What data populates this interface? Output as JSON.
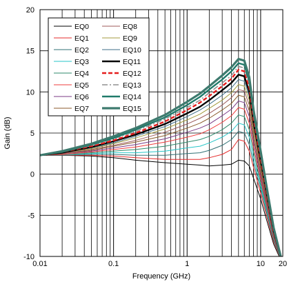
{
  "chart_data": {
    "type": "line",
    "title": "",
    "xlabel": "Frequency (GHz)",
    "ylabel": "Gain (dB)",
    "xscale": "log",
    "xlim": [
      0.01,
      20
    ],
    "ylim": [
      -10,
      20
    ],
    "grid": true,
    "legend_position": "top-left",
    "x_ticks": [
      {
        "value": 0.01,
        "label": "0.01"
      },
      {
        "value": 0.1,
        "label": "0.1"
      },
      {
        "value": 1,
        "label": "1"
      },
      {
        "value": 10,
        "label": "10"
      },
      {
        "value": 20,
        "label": "20"
      }
    ],
    "y_ticks": [
      {
        "value": -10,
        "label": "-10"
      },
      {
        "value": -5,
        "label": "-5"
      },
      {
        "value": 0,
        "label": "0"
      },
      {
        "value": 5,
        "label": "5"
      },
      {
        "value": 10,
        "label": "10"
      },
      {
        "value": 15,
        "label": "15"
      },
      {
        "value": 20,
        "label": "20"
      }
    ],
    "x": [
      0.01,
      0.02,
      0.05,
      0.1,
      0.2,
      0.5,
      1,
      1.5,
      2,
      3,
      4,
      5,
      6,
      7,
      8,
      10,
      12,
      15,
      20
    ],
    "series": [
      {
        "name": "EQ0",
        "color": "#000000",
        "width": 1,
        "dash": "",
        "values": [
          2.3,
          2.3,
          2.2,
          2.0,
          1.7,
          1.4,
          1.2,
          1.1,
          1.0,
          1.1,
          1.2,
          1.7,
          1.6,
          1.0,
          -0.5,
          -3.0,
          -5.5,
          -8.5,
          -11.0
        ]
      },
      {
        "name": "EQ1",
        "color": "#e52a2a",
        "width": 1,
        "dash": "",
        "values": [
          2.3,
          2.3,
          2.3,
          2.2,
          2.0,
          1.8,
          1.8,
          1.8,
          2.0,
          2.4,
          3.0,
          4.2,
          4.0,
          2.8,
          0.8,
          -2.3,
          -5.0,
          -8.2,
          -11.0
        ]
      },
      {
        "name": "EQ2",
        "color": "#2f6f73",
        "width": 1,
        "dash": "",
        "values": [
          2.3,
          2.3,
          2.4,
          2.4,
          2.3,
          2.3,
          2.5,
          2.6,
          2.9,
          3.5,
          4.2,
          5.2,
          5.0,
          3.6,
          1.4,
          -1.8,
          -4.6,
          -8.0,
          -11.0
        ]
      },
      {
        "name": "EQ3",
        "color": "#25c6c8",
        "width": 1,
        "dash": "",
        "values": [
          2.3,
          2.4,
          2.5,
          2.6,
          2.6,
          2.8,
          3.2,
          3.4,
          3.8,
          4.5,
          5.2,
          6.2,
          6.0,
          4.5,
          2.0,
          -1.4,
          -4.3,
          -7.8,
          -11.0
        ]
      },
      {
        "name": "EQ4",
        "color": "#2c8a6b",
        "width": 1,
        "dash": "",
        "values": [
          2.3,
          2.4,
          2.6,
          2.8,
          3.0,
          3.4,
          3.9,
          4.2,
          4.6,
          5.4,
          6.2,
          7.2,
          7.0,
          5.4,
          2.7,
          -1.0,
          -4.0,
          -7.7,
          -11.0
        ]
      },
      {
        "name": "EQ5",
        "color": "#ef3b3b",
        "width": 1,
        "dash": "",
        "values": [
          2.3,
          2.4,
          2.7,
          3.0,
          3.3,
          3.9,
          4.5,
          4.9,
          5.4,
          6.3,
          7.1,
          8.1,
          7.9,
          6.2,
          3.3,
          -0.6,
          -3.7,
          -7.6,
          -11.0
        ]
      },
      {
        "name": "EQ6",
        "color": "#7b3a86",
        "width": 1,
        "dash": "",
        "values": [
          2.3,
          2.5,
          2.8,
          3.2,
          3.6,
          4.3,
          5.1,
          5.6,
          6.1,
          7.1,
          7.9,
          8.9,
          8.7,
          7.0,
          3.9,
          -0.2,
          -3.4,
          -7.4,
          -11.0
        ]
      },
      {
        "name": "EQ7",
        "color": "#8b5a2b",
        "width": 1,
        "dash": "",
        "values": [
          2.3,
          2.5,
          2.9,
          3.4,
          3.9,
          4.7,
          5.6,
          6.2,
          6.8,
          7.8,
          8.6,
          9.6,
          9.4,
          7.7,
          4.4,
          0.2,
          -3.1,
          -7.3,
          -11.0
        ]
      },
      {
        "name": "EQ8",
        "color": "#9c5a5a",
        "width": 1,
        "dash": "",
        "values": [
          2.3,
          2.5,
          3.0,
          3.5,
          4.1,
          5.1,
          6.1,
          6.8,
          7.4,
          8.4,
          9.3,
          10.3,
          10.1,
          8.4,
          4.9,
          0.6,
          -2.8,
          -7.2,
          -11.0
        ]
      },
      {
        "name": "EQ9",
        "color": "#a39a3c",
        "width": 1,
        "dash": "",
        "values": [
          2.3,
          2.6,
          3.1,
          3.7,
          4.4,
          5.5,
          6.6,
          7.3,
          8.0,
          9.0,
          9.9,
          10.9,
          10.7,
          9.0,
          5.4,
          1.0,
          -2.6,
          -7.1,
          -11.0
        ]
      },
      {
        "name": "EQ10",
        "color": "#3b6d87",
        "width": 1,
        "dash": "",
        "values": [
          2.3,
          2.6,
          3.2,
          3.8,
          4.6,
          5.8,
          7.0,
          7.8,
          8.5,
          9.6,
          10.5,
          11.5,
          11.3,
          9.5,
          5.9,
          1.3,
          -2.4,
          -7.0,
          -11.0
        ]
      },
      {
        "name": "EQ11",
        "color": "#000000",
        "width": 2.4,
        "dash": "",
        "values": [
          2.3,
          2.6,
          3.3,
          4.0,
          4.8,
          6.1,
          7.4,
          8.2,
          9.0,
          10.2,
          11.1,
          12.1,
          11.9,
          10.0,
          6.3,
          1.6,
          -2.2,
          -6.9,
          -11.0
        ]
      },
      {
        "name": "EQ12",
        "color": "#e51c1c",
        "width": 2.4,
        "dash": "6,3",
        "values": [
          2.3,
          2.7,
          3.4,
          4.1,
          5.0,
          6.4,
          7.8,
          8.7,
          9.5,
          10.7,
          11.6,
          12.7,
          12.5,
          10.5,
          6.7,
          1.9,
          -2.0,
          -6.8,
          -11.0
        ]
      },
      {
        "name": "EQ13",
        "color": "#8f8f8f",
        "width": 1.6,
        "dash": "8,3,2,3",
        "values": [
          2.3,
          2.7,
          3.5,
          4.3,
          5.2,
          6.7,
          8.1,
          9.0,
          9.9,
          11.1,
          12.0,
          13.1,
          12.9,
          10.9,
          7.1,
          2.2,
          -1.8,
          -6.7,
          -11.0
        ]
      },
      {
        "name": "EQ14",
        "color": "#1f7a6a",
        "width": 2.4,
        "dash": "",
        "values": [
          2.3,
          2.7,
          3.6,
          4.4,
          5.4,
          6.9,
          8.4,
          9.4,
          10.3,
          11.5,
          12.5,
          13.5,
          13.3,
          11.3,
          7.4,
          2.5,
          -1.6,
          -6.6,
          -11.0
        ]
      },
      {
        "name": "EQ15",
        "color": "#3d7a6e",
        "width": 3.2,
        "dash": "",
        "values": [
          2.3,
          2.8,
          3.7,
          4.6,
          5.6,
          7.2,
          8.8,
          9.8,
          10.7,
          12.0,
          13.0,
          14.0,
          13.8,
          11.8,
          7.8,
          2.8,
          -1.4,
          -6.5,
          -11.0
        ]
      }
    ]
  }
}
